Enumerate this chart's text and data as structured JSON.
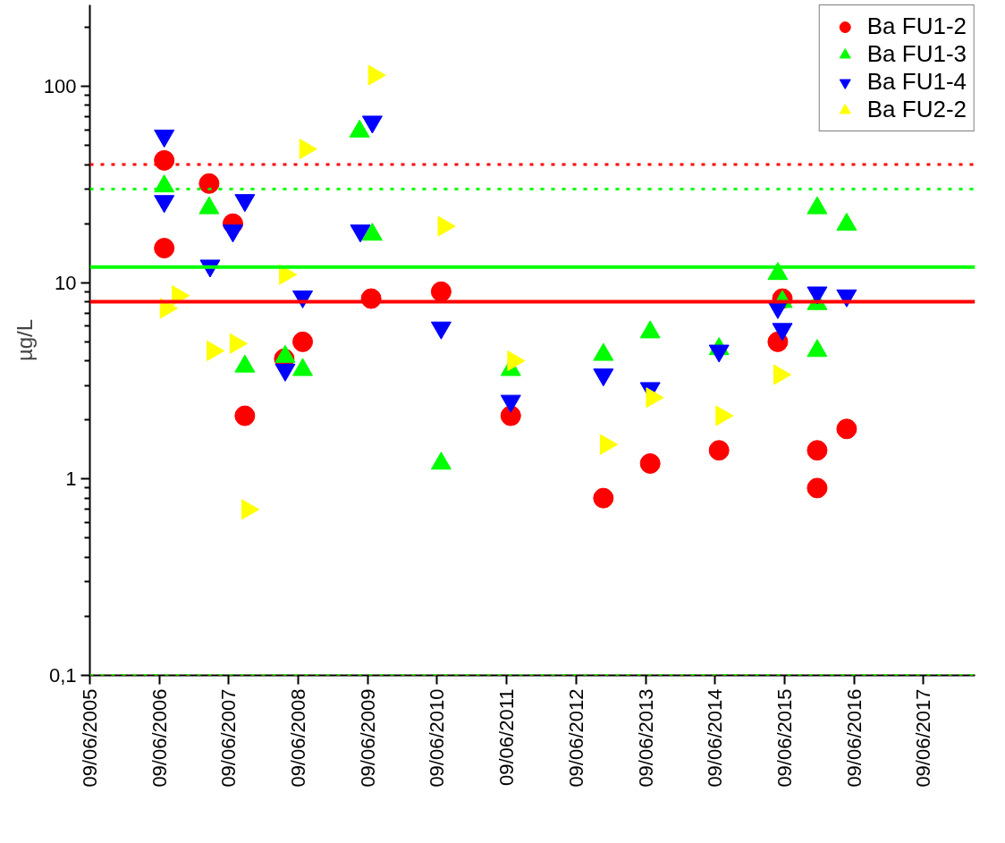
{
  "chart_data": {
    "type": "scatter",
    "ylabel": "µg/L",
    "log": true,
    "grid": false,
    "legend": "top right",
    "xlim": [
      "2005-06-09",
      "2018-03-07"
    ],
    "xticks": [
      {
        "value": "2005-06-09",
        "label": "09/06/2005"
      },
      {
        "value": "2006-06-09",
        "label": "09/06/2006"
      },
      {
        "value": "2007-06-09",
        "label": "09/06/2007"
      },
      {
        "value": "2008-06-09",
        "label": "09/06/2008"
      },
      {
        "value": "2009-06-09",
        "label": "09/06/2009"
      },
      {
        "value": "2010-06-09",
        "label": "09/06/2010"
      },
      {
        "value": "2011-06-09",
        "label": "09/06/2011"
      },
      {
        "value": "2012-06-09",
        "label": "09/06/2012"
      },
      {
        "value": "2013-06-09",
        "label": "09/06/2013"
      },
      {
        "value": "2014-06-09",
        "label": "09/06/2014"
      },
      {
        "value": "2015-06-09",
        "label": "09/06/2015"
      },
      {
        "value": "2016-06-09",
        "label": "09/06/2016"
      },
      {
        "value": "2017-06-09",
        "label": "09/06/2017"
      }
    ],
    "ylim": [
      0.1,
      260
    ],
    "yticks": [
      {
        "value": 0.1,
        "label": "0,1"
      },
      1,
      10,
      100
    ],
    "series": [
      {
        "name": "Ba FU1-2",
        "color": "#ff0000",
        "marker": "circle",
        "x": [
          "2006-07-05",
          "2006-07-05",
          "2007-02-26",
          "2007-07-01",
          "2007-09-02",
          "2008-03-27",
          "2008-07-02",
          "2009-06-27",
          "2010-06-30",
          "2011-07-01",
          "2012-10-30",
          "2013-07-03",
          "2014-06-30",
          "2015-05-05",
          "2015-05-29",
          "2015-11-28",
          "2015-11-28",
          "2016-05-01"
        ],
        "values": [
          42,
          15,
          32,
          20,
          2.1,
          4.1,
          5.0,
          8.3,
          9.0,
          2.1,
          0.8,
          1.2,
          1.4,
          5.0,
          8.3,
          1.4,
          0.9,
          1.8
        ]
      },
      {
        "name": "Ba FU1-3",
        "color": "#00ff00",
        "marker": "triangle",
        "x": [
          "2006-07-05",
          "2007-02-26",
          "2007-09-02",
          "2008-04-01",
          "2008-07-02",
          "2009-04-27",
          "2009-07-03",
          "2010-06-30",
          "2011-07-01",
          "2012-10-30",
          "2013-07-03",
          "2014-06-30",
          "2015-05-05",
          "2015-05-29",
          "2015-11-28",
          "2015-11-28",
          "2015-11-28",
          "2016-05-01"
        ],
        "values": [
          31,
          24,
          3.75,
          4.2,
          3.6,
          59,
          17.6,
          1.2,
          3.6,
          4.3,
          5.6,
          4.6,
          11.1,
          8.0,
          24,
          7.8,
          4.5,
          19.8
        ]
      },
      {
        "name": "Ba FU1-4",
        "color": "#0000ff",
        "marker": "triangle_down",
        "x": [
          "2006-07-05",
          "2006-07-05",
          "2007-03-03",
          "2007-09-02",
          "2007-07-01",
          "2008-04-01",
          "2008-07-02",
          "2009-05-01",
          "2009-07-03",
          "2010-06-30",
          "2011-07-01",
          "2012-10-30",
          "2013-07-03",
          "2014-06-30",
          "2015-05-05",
          "2015-05-29",
          "2015-11-28",
          "2016-05-01"
        ],
        "values": [
          56,
          26,
          12.2,
          26.3,
          18.4,
          3.6,
          8.5,
          18.4,
          66,
          5.9,
          2.5,
          3.4,
          2.9,
          4.5,
          7.5,
          5.8,
          8.9,
          8.6
        ]
      },
      {
        "name": "Ba FU2-2",
        "color": "#ffff00",
        "marker": "triangle_right",
        "x": [
          "2006-07-14",
          "2006-09-15",
          "2007-03-17",
          "2007-07-16",
          "2007-09-16",
          "2008-04-01",
          "2008-07-16",
          "2009-07-13",
          "2010-07-14",
          "2011-07-15",
          "2012-11-13",
          "2013-07-13",
          "2014-07-14",
          "2015-05-14"
        ],
        "values": [
          7.4,
          8.6,
          4.5,
          4.9,
          0.7,
          11,
          48,
          114,
          19.4,
          4.0,
          1.5,
          2.6,
          2.1,
          3.4
        ]
      }
    ],
    "ref_lines": [
      {
        "axis": "y",
        "value": 40,
        "color": "#ff0000",
        "line_style": "dotted"
      },
      {
        "axis": "y",
        "value": 30,
        "color": "#00ff00",
        "line_style": "dotted"
      },
      {
        "axis": "y",
        "value": 12,
        "color": "#00ff00",
        "line_style": "solid"
      },
      {
        "axis": "y",
        "value": 8,
        "color": "#ff0000",
        "line_style": "solid"
      },
      {
        "axis": "y",
        "value": 0.1,
        "color": "#ff0000",
        "line_style": "dotted"
      },
      {
        "axis": "y",
        "value": 0.1,
        "color": "#00ff00",
        "line_style": "dotted"
      }
    ]
  }
}
